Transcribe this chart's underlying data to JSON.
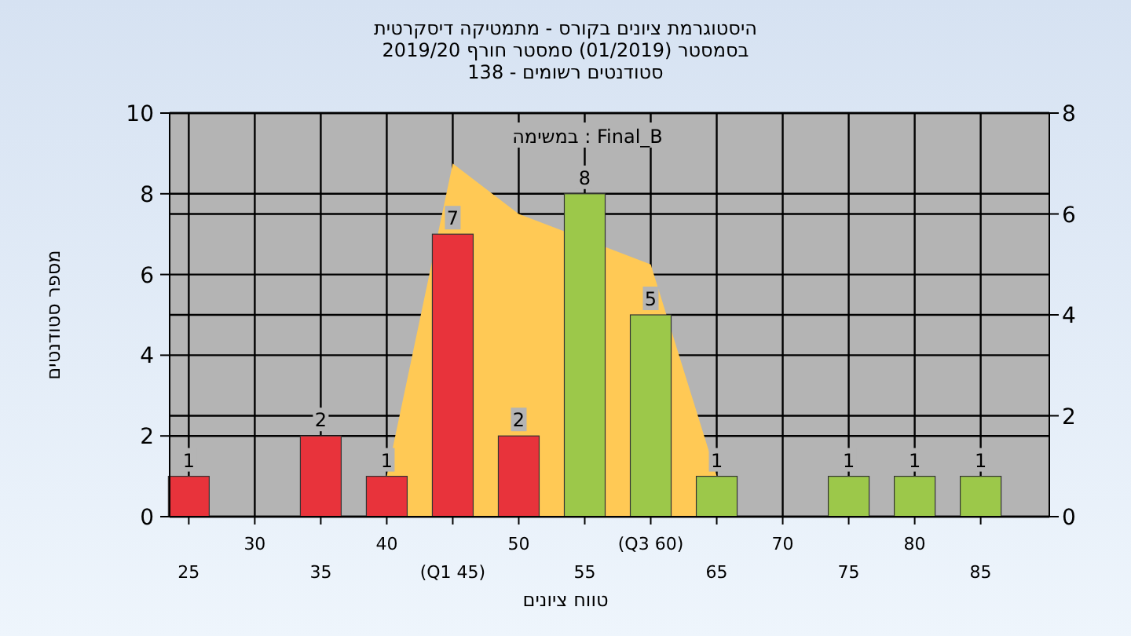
{
  "chart_data": {
    "type": "bar",
    "title": "היסטוגרמת ציונים בקורס - מתמטיקה דיסקרטית",
    "subtitle": "בסמסטר  (01/2019)  סמסטר חורף 2019/20\nסטודנטים רשומים - 138",
    "xlabel": "טווח ציונים",
    "ylabel": "מספר סטודנטים",
    "annotations": [
      "במשימה : Final_B"
    ],
    "categories": [
      "25",
      "30",
      "35",
      "40",
      "(Q1 45)",
      "50",
      "55",
      "(Q3 60)",
      "65",
      "70",
      "75",
      "80",
      "85"
    ],
    "series": [
      {
        "type": "area",
        "axis": "y2",
        "color": "#ffc955",
        "x": [
          "40",
          "(Q1 45)",
          "50",
          "(Q3 60)",
          "65"
        ],
        "values": [
          0.8,
          7,
          6,
          5,
          0.8
        ]
      },
      {
        "colors": [
          "#e8333b",
          null,
          "#e8333b",
          "#e8333b",
          "#e8333b",
          "#e8333b",
          "#9cc84a",
          "#9cc84a",
          "#9cc84a",
          null,
          "#9cc84a",
          "#9cc84a",
          "#9cc84a"
        ],
        "values": [
          1,
          null,
          2,
          1,
          7,
          2,
          8,
          5,
          1,
          null,
          1,
          1,
          1
        ],
        "value_labels": [
          "1",
          null,
          "2",
          "1",
          "7",
          "2",
          "8",
          "5",
          "1",
          null,
          "1",
          "1",
          "1"
        ]
      }
    ],
    "ylim": [
      0,
      10
    ],
    "yticks": [
      0,
      2,
      4,
      6,
      8,
      10
    ],
    "y2lim": [
      0,
      8
    ],
    "y2ticks": [
      0,
      2,
      4,
      6,
      8
    ],
    "grid": true
  }
}
